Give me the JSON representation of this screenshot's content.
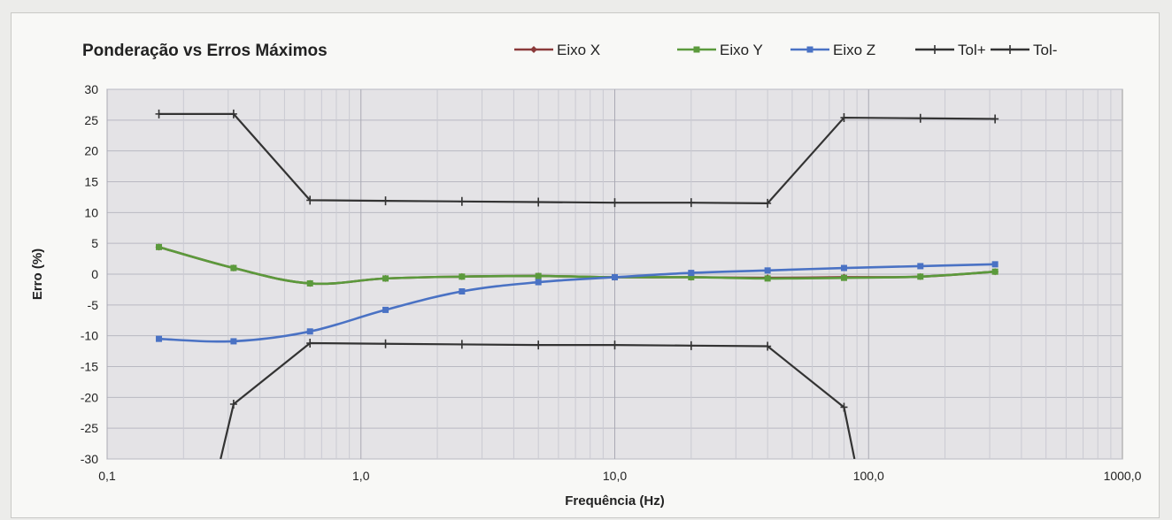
{
  "chart_data": {
    "type": "line",
    "title": "Ponderação vs Erros Máximos",
    "xlabel": "Frequência (Hz)",
    "ylabel": "Erro (%)",
    "x_scale": "log",
    "xlim": [
      0.1,
      1000.0
    ],
    "ylim": [
      -30,
      30
    ],
    "x_ticks": [
      0.1,
      1.0,
      10.0,
      100.0,
      1000.0
    ],
    "x_tick_labels": [
      "0,1",
      "1,0",
      "10,0",
      "100,0",
      "1000,0"
    ],
    "y_ticks": [
      30,
      25,
      20,
      15,
      10,
      5,
      0,
      -5,
      -10,
      -15,
      -20,
      -25,
      -30
    ],
    "y_tick_labels": [
      "30",
      "25",
      "20",
      "15",
      "10",
      "5",
      "0",
      "-5",
      "-10",
      "-15",
      "-20",
      "-25",
      "-30"
    ],
    "grid": true,
    "legend_position": "top",
    "series": [
      {
        "name": "Eixo X",
        "color": "#8b3a3a",
        "marker": "diamond",
        "x": [
          0.16,
          0.315,
          0.63,
          1.25,
          2.5,
          5.0,
          10.0,
          20.0,
          40.0,
          80.0,
          160.0,
          315.0
        ],
        "y": [
          4.4,
          1.0,
          -1.5,
          -0.7,
          -0.4,
          -0.3,
          -0.5,
          -0.5,
          -0.6,
          -0.5,
          -0.4,
          0.4
        ]
      },
      {
        "name": "Eixo Y",
        "color": "#5b9a3c",
        "marker": "square",
        "x": [
          0.16,
          0.315,
          0.63,
          1.25,
          2.5,
          5.0,
          10.0,
          20.0,
          40.0,
          80.0,
          160.0,
          315.0
        ],
        "y": [
          4.4,
          1.0,
          -1.5,
          -0.7,
          -0.4,
          -0.3,
          -0.5,
          -0.5,
          -0.7,
          -0.6,
          -0.4,
          0.4
        ]
      },
      {
        "name": "Eixo Z",
        "color": "#4a72c4",
        "marker": "square",
        "x": [
          0.16,
          0.315,
          0.63,
          1.25,
          2.5,
          5.0,
          10.0,
          20.0,
          40.0,
          80.0,
          160.0,
          315.0
        ],
        "y": [
          -10.5,
          -10.9,
          -9.3,
          -5.8,
          -2.8,
          -1.3,
          -0.5,
          0.2,
          0.6,
          1.0,
          1.3,
          1.6
        ]
      },
      {
        "name": "Tol+",
        "color": "#333333",
        "marker": "plus",
        "x": [
          0.16,
          0.315,
          0.63,
          1.25,
          2.5,
          5.0,
          10.0,
          20.0,
          40.0,
          80.0,
          160.0,
          315.0
        ],
        "y": [
          26.0,
          26.0,
          12.0,
          11.9,
          11.8,
          11.7,
          11.6,
          11.6,
          11.5,
          25.4,
          25.3,
          25.2
        ]
      },
      {
        "name": "Tol-",
        "color": "#333333",
        "marker": "plus",
        "x": [
          0.28,
          0.315,
          0.63,
          1.25,
          2.5,
          5.0,
          10.0,
          20.0,
          40.0,
          80.0,
          88.0
        ],
        "y": [
          -30,
          -21.1,
          -11.2,
          -11.3,
          -11.4,
          -11.5,
          -11.5,
          -11.6,
          -11.7,
          -21.6,
          -30
        ],
        "marker_mask": [
          false,
          true,
          true,
          true,
          true,
          true,
          true,
          true,
          true,
          true,
          false
        ]
      }
    ]
  }
}
